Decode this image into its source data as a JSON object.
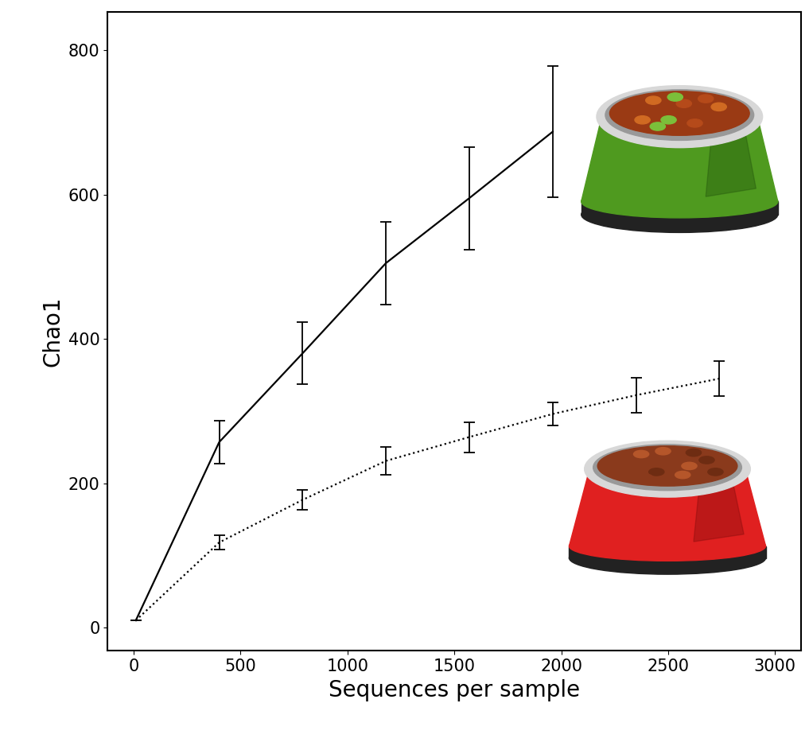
{
  "chart_data": {
    "type": "line",
    "x_label": "Sequences per sample",
    "y_label": "Chao1",
    "xlim": [
      -122,
      3121
    ],
    "ylim": [
      -32,
      853
    ],
    "xticks": [
      0,
      500,
      1000,
      1500,
      2000,
      2500,
      3000
    ],
    "yticks": [
      0,
      200,
      400,
      600,
      800
    ],
    "grid": false,
    "series": [
      {
        "color": "#000000",
        "line_style": "solid",
        "marker": "none",
        "x": [
          10,
          400,
          790,
          1180,
          1570,
          1960
        ],
        "values": [
          10,
          257,
          380,
          505,
          595,
          687
        ],
        "error": [
          0,
          30,
          43,
          57,
          71,
          91
        ]
      },
      {
        "color": "#000000",
        "line_style": "dotted",
        "marker": "none",
        "x": [
          10,
          400,
          790,
          1180,
          1570,
          1960,
          2350,
          2740
        ],
        "values": [
          10,
          118,
          177,
          231,
          264,
          296,
          322,
          345
        ],
        "error": [
          0,
          10,
          14,
          19,
          21,
          16,
          24,
          24
        ]
      }
    ]
  }
}
